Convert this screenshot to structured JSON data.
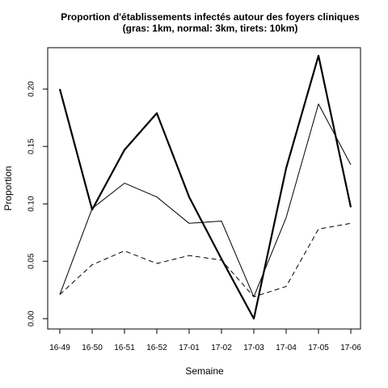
{
  "chart_data": {
    "type": "line",
    "title": "Proportion d'établissements infectés autour des foyers cliniques",
    "subtitle": "(gras: 1km, normal: 3km, tirets: 10km)",
    "xlabel": "Semaine",
    "ylabel": "Proportion",
    "categories": [
      "16-49",
      "16-50",
      "16-51",
      "16-52",
      "17-01",
      "17-02",
      "17-03",
      "17-04",
      "17-05",
      "17-06"
    ],
    "y_ticks": [
      "0.00",
      "0.05",
      "0.10",
      "0.15",
      "0.20"
    ],
    "ylim": [
      -0.009,
      0.236
    ],
    "grid": false,
    "series": [
      {
        "style": "bold",
        "values": [
          0.2,
          0.095,
          0.147,
          0.179,
          0.106,
          0.052,
          0.0,
          0.131,
          0.229,
          0.097
        ]
      },
      {
        "style": "normal",
        "values": [
          0.021,
          0.096,
          0.118,
          0.106,
          0.083,
          0.085,
          0.019,
          0.088,
          0.187,
          0.134
        ]
      },
      {
        "style": "dashed",
        "values": [
          0.021,
          0.047,
          0.059,
          0.048,
          0.055,
          0.051,
          0.019,
          0.028,
          0.078,
          0.083
        ]
      }
    ]
  }
}
